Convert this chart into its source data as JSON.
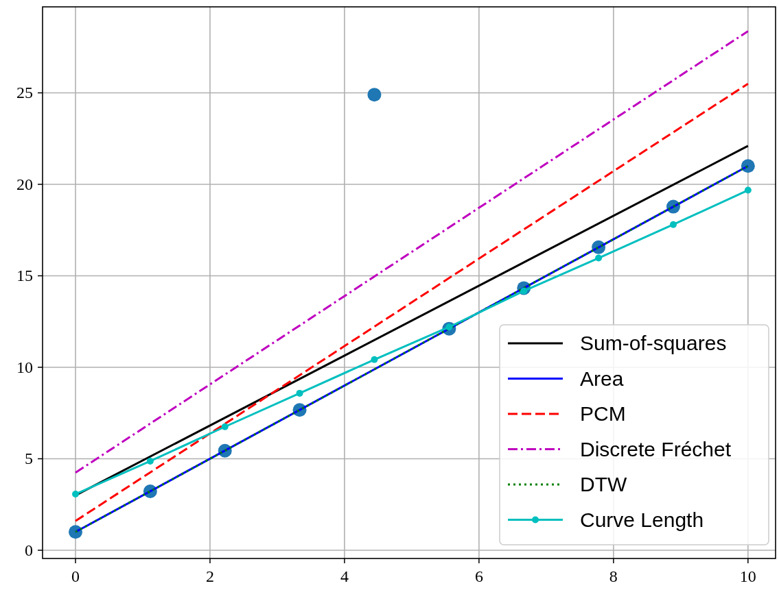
{
  "chart_data": {
    "type": "line",
    "xlim": [
      -0.49,
      10.41
    ],
    "ylim": [
      -0.45,
      29.7
    ],
    "xticks": [
      0,
      2,
      4,
      6,
      8,
      10
    ],
    "yticks": [
      0,
      5,
      10,
      15,
      20,
      25
    ],
    "grid": true,
    "legend": "bottom right",
    "series": [
      {
        "type": "scatter",
        "color": "#1f77b4",
        "marker": "circle",
        "x": [
          0,
          1.111,
          2.222,
          3.333,
          4.444,
          5.556,
          6.667,
          7.778,
          8.889,
          10
        ],
        "values": [
          1,
          3.22,
          5.44,
          7.67,
          24.9,
          12.11,
          14.33,
          16.56,
          18.78,
          21
        ]
      },
      {
        "name": "Sum-of-squares",
        "color": "#000000",
        "line_style": "solid",
        "x": [
          0,
          10
        ],
        "values": [
          3.0,
          22.1
        ]
      },
      {
        "name": "Area",
        "color": "#0000ff",
        "line_style": "solid",
        "x": [
          0,
          10
        ],
        "values": [
          1,
          21
        ]
      },
      {
        "name": "PCM",
        "color": "#ff0000",
        "line_style": "dashed",
        "x": [
          0,
          10
        ],
        "values": [
          1.6,
          25.5
        ]
      },
      {
        "name": "Discrete Fréchet",
        "color": "#bf00bf",
        "line_style": "dashdot",
        "x": [
          0,
          10
        ],
        "values": [
          4.24,
          28.37
        ]
      },
      {
        "name": "DTW",
        "color": "#008000",
        "line_style": "dotted",
        "x": [
          0,
          10
        ],
        "values": [
          1,
          21
        ]
      },
      {
        "name": "Curve Length",
        "color": "#00bfbf",
        "line_style": "solid",
        "marker": "circle",
        "x": [
          0,
          1.111,
          2.222,
          3.333,
          4.444,
          5.556,
          6.667,
          7.778,
          8.889,
          10
        ],
        "values": [
          3.07,
          4.87,
          6.75,
          8.58,
          10.42,
          12.2,
          14.17,
          15.97,
          17.8,
          19.68
        ]
      }
    ]
  }
}
